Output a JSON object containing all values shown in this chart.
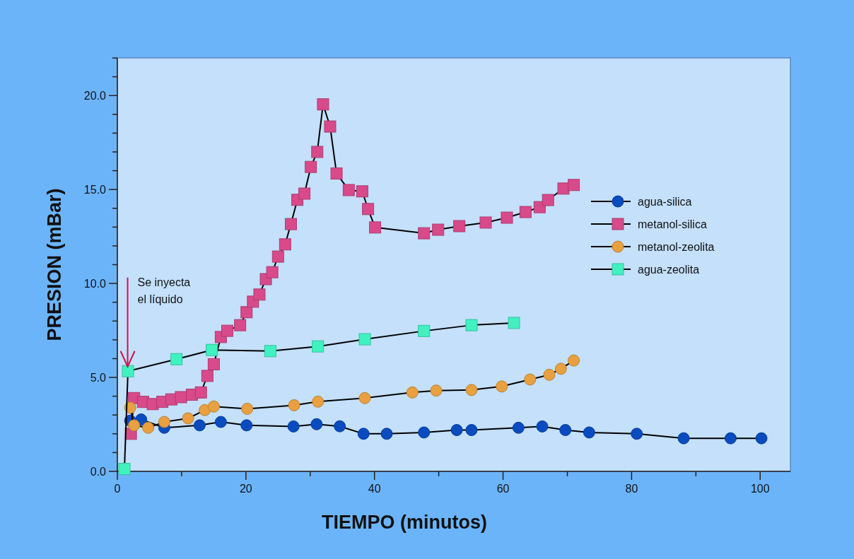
{
  "chart_data": {
    "type": "line",
    "xlabel": "TIEMPO (minutos)",
    "ylabel": "PRESION (mBar)",
    "xlim": [
      0,
      104.7
    ],
    "ylim": [
      0,
      22
    ],
    "xticks": [
      0,
      {
        "value": 10,
        "label": null
      },
      20,
      {
        "value": 30,
        "label": null
      },
      40,
      {
        "value": 50,
        "label": null
      },
      60,
      {
        "value": 70,
        "label": null
      },
      80,
      {
        "value": 90,
        "label": null
      },
      100
    ],
    "yticks": [
      {
        "value": 0,
        "label": "0.0"
      },
      {
        "value": 1,
        "label": null
      },
      {
        "value": 2,
        "label": null
      },
      {
        "value": 3,
        "label": null
      },
      {
        "value": 4,
        "label": null
      },
      {
        "value": 5,
        "label": "5.0"
      },
      {
        "value": 6,
        "label": null
      },
      {
        "value": 7,
        "label": null
      },
      {
        "value": 8,
        "label": null
      },
      {
        "value": 9,
        "label": null
      },
      {
        "value": 10,
        "label": "10.0"
      },
      {
        "value": 11,
        "label": null
      },
      {
        "value": 12,
        "label": null
      },
      {
        "value": 13,
        "label": null
      },
      {
        "value": 14,
        "label": null
      },
      {
        "value": 15,
        "label": "15.0"
      },
      {
        "value": 16,
        "label": null
      },
      {
        "value": 17,
        "label": null
      },
      {
        "value": 18,
        "label": null
      },
      {
        "value": 19,
        "label": null
      },
      {
        "value": 20,
        "label": "20.0"
      },
      {
        "value": 21,
        "label": null
      },
      {
        "value": 22,
        "label": null
      }
    ],
    "grid": false,
    "legend": "right",
    "line_style": "solid",
    "annotations": [
      {
        "text": "Se inyecta el líquido",
        "x": 1.6,
        "y": 5.5
      }
    ],
    "series": [
      {
        "name": "agua-silica",
        "color": "#0a4bbf",
        "marker": "circle",
        "x": [
          2.0,
          3.7,
          7.3,
          12.8,
          16.1,
          20.1,
          27.4,
          31.0,
          34.6,
          38.3,
          41.9,
          47.7,
          52.8,
          55.1,
          62.4,
          66.1,
          69.7,
          73.4,
          80.8,
          88.1,
          95.4,
          100.2
        ],
        "values": [
          2.7,
          2.76,
          2.32,
          2.45,
          2.63,
          2.45,
          2.39,
          2.51,
          2.4,
          2.0,
          2.0,
          2.07,
          2.2,
          2.2,
          2.32,
          2.39,
          2.2,
          2.07,
          2.0,
          1.76,
          1.76,
          1.76
        ]
      },
      {
        "name": "metanol-silica",
        "color": "#d84a8a",
        "marker": "square",
        "x": [
          2.1,
          2.6,
          4.0,
          5.5,
          7.0,
          8.4,
          9.9,
          11.6,
          13.0,
          14.0,
          15.0,
          16.1,
          17.1,
          19.1,
          20.1,
          21.1,
          22.1,
          23.1,
          24.1,
          25.0,
          26.1,
          27.0,
          28.0,
          29.1,
          30.1,
          31.1,
          32.0,
          33.1,
          34.1,
          36.0,
          38.1,
          39.0,
          40.1,
          47.7,
          49.9,
          53.2,
          57.3,
          60.6,
          63.5,
          65.7,
          67.0,
          69.4,
          71.0
        ],
        "values": [
          2.0,
          3.9,
          3.7,
          3.58,
          3.7,
          3.83,
          3.95,
          4.08,
          4.2,
          5.08,
          5.7,
          7.15,
          7.48,
          7.78,
          8.47,
          9.03,
          9.41,
          10.23,
          10.6,
          11.43,
          12.08,
          13.16,
          14.45,
          14.78,
          16.2,
          17.0,
          19.53,
          18.35,
          15.85,
          14.97,
          14.9,
          13.96,
          12.98,
          12.67,
          12.86,
          13.05,
          13.24,
          13.5,
          13.8,
          14.06,
          14.44,
          15.05,
          15.24
        ]
      },
      {
        "name": "metanol-zeolita",
        "color": "#e8a040",
        "marker": "circle",
        "x": [
          2.0,
          2.6,
          4.8,
          7.3,
          11.0,
          13.6,
          15.0,
          20.2,
          27.5,
          31.2,
          38.5,
          45.9,
          49.6,
          55.1,
          59.8,
          64.2,
          67.2,
          69.0,
          71.0
        ],
        "values": [
          3.39,
          2.45,
          2.32,
          2.63,
          2.82,
          3.26,
          3.45,
          3.33,
          3.52,
          3.71,
          3.9,
          4.2,
          4.3,
          4.33,
          4.52,
          4.89,
          5.14,
          5.46,
          5.9
        ]
      },
      {
        "name": "agua-zeolita",
        "color": "#40f2c0",
        "marker": "square",
        "x": [
          1.1,
          1.65,
          9.2,
          14.7,
          23.8,
          31.2,
          38.5,
          47.7,
          55.1,
          61.7
        ],
        "values": [
          0.13,
          5.33,
          5.97,
          6.46,
          6.4,
          6.65,
          7.03,
          7.47,
          7.78,
          7.9
        ]
      }
    ]
  }
}
